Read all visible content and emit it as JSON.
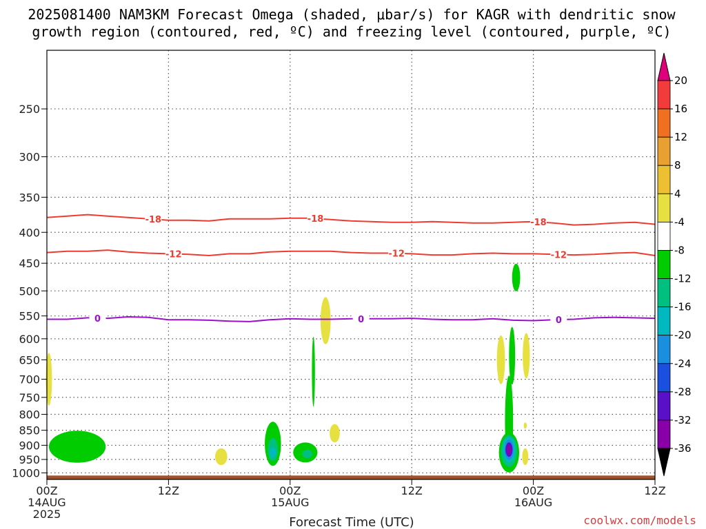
{
  "chart_data": {
    "type": "time-height",
    "title": "2025081400 NAM3KM Forecast Omega (shaded, μbar/s) for KAGR with dendritic snow",
    "subtitle": "growth region (contoured, red, ºC) and freezing level (contoured, purple, ºC)",
    "xlabel": "Forecast Time (UTC)",
    "x_ticks": [
      {
        "hour": 0,
        "label": "00Z",
        "date": "14AUG",
        "year": "2025"
      },
      {
        "hour": 12,
        "label": "12Z",
        "date": "",
        "year": ""
      },
      {
        "hour": 24,
        "label": "00Z",
        "date": "15AUG",
        "year": ""
      },
      {
        "hour": 36,
        "label": "12Z",
        "date": "",
        "year": ""
      },
      {
        "hour": 48,
        "label": "00Z",
        "date": "16AUG",
        "year": ""
      },
      {
        "hour": 60,
        "label": "12Z",
        "date": "",
        "year": ""
      }
    ],
    "xlim": [
      0,
      60
    ],
    "y_ticks": [
      250,
      300,
      350,
      400,
      450,
      500,
      550,
      600,
      650,
      700,
      750,
      800,
      850,
      900,
      950,
      1000
    ],
    "y_tick_labels": [
      "250",
      "300",
      "350",
      "400",
      "450",
      "500",
      "550",
      "600",
      "650",
      "700",
      "750",
      "800",
      "850",
      "900",
      "950",
      "1000"
    ],
    "ylim": [
      200,
      1025
    ],
    "grid": true,
    "colorbar": {
      "labels": [
        "20",
        "16",
        "12",
        "8",
        "4",
        "-4",
        "-8",
        "-12",
        "-16",
        "-20",
        "-24",
        "-28",
        "-32",
        "-36"
      ],
      "colors": [
        "#e0007a",
        "#f23b3b",
        "#f07020",
        "#e8a030",
        "#ecc030",
        "#e6e040",
        "#ffffff",
        "#00cc00",
        "#00c080",
        "#00b8c0",
        "#1a8fe0",
        "#1a4fe0",
        "#5a10c8",
        "#8a00a8",
        "#a0a0a0",
        "#000000"
      ]
    },
    "contours": [
      {
        "name": "-18",
        "color": "#ee3b30",
        "x": [
          0,
          2,
          4,
          6,
          8,
          10,
          12,
          14,
          16,
          18,
          20,
          22,
          24,
          26,
          28,
          30,
          32,
          34,
          36,
          38,
          40,
          42,
          44,
          46,
          48,
          50,
          52,
          54,
          56,
          58,
          60
        ],
        "y": [
          378,
          376,
          374,
          376,
          378,
          380,
          382,
          382,
          383,
          380,
          380,
          380,
          379,
          379,
          381,
          383,
          384,
          385,
          385,
          384,
          385,
          386,
          386,
          385,
          384,
          386,
          389,
          388,
          386,
          385,
          388
        ],
        "labels_at": [
          10.5,
          26.5,
          48.5
        ]
      },
      {
        "name": "-12",
        "color": "#ee3b30",
        "x": [
          0,
          2,
          4,
          6,
          8,
          10,
          12,
          14,
          16,
          18,
          20,
          22,
          24,
          26,
          28,
          30,
          32,
          34,
          36,
          38,
          40,
          42,
          44,
          46,
          48,
          50,
          52,
          54,
          56,
          58,
          60
        ],
        "y": [
          432,
          430,
          430,
          428,
          431,
          433,
          434,
          435,
          437,
          434,
          434,
          431,
          430,
          430,
          430,
          432,
          433,
          433,
          434,
          436,
          436,
          434,
          433,
          434,
          434,
          435,
          436,
          435,
          433,
          432,
          437
        ],
        "labels_at": [
          12.5,
          34.5,
          50.5
        ]
      },
      {
        "name": "0",
        "color": "#9a10c8",
        "x": [
          0,
          2,
          4,
          6,
          8,
          10,
          12,
          14,
          16,
          18,
          20,
          22,
          24,
          26,
          28,
          30,
          32,
          34,
          36,
          38,
          40,
          42,
          44,
          46,
          48,
          50,
          52,
          54,
          56,
          58,
          60
        ],
        "y": [
          557,
          557,
          554,
          555,
          552,
          553,
          558,
          558,
          559,
          561,
          562,
          558,
          556,
          557,
          557,
          556,
          556,
          556,
          555,
          557,
          558,
          558,
          556,
          559,
          560,
          558,
          557,
          554,
          553,
          554,
          555
        ],
        "labels_at": [
          5,
          31,
          50.5
        ]
      }
    ],
    "omega_features": [
      {
        "name": "yellow-cell",
        "value": 4,
        "color": "#e6e040",
        "x": 0.2,
        "p": 700,
        "rx": 0.3,
        "rp": 70
      },
      {
        "name": "green-cell",
        "value": -4,
        "color": "#00cc00",
        "x": 3,
        "p": 905,
        "rx": 2.8,
        "rp": 55
      },
      {
        "name": "yellow-cell",
        "value": 4,
        "color": "#e6e040",
        "x": 17.2,
        "p": 940,
        "rx": 0.6,
        "rp": 30
      },
      {
        "name": "green-cell",
        "value": -4,
        "color": "#00cc00",
        "x": 22.3,
        "p": 895,
        "rx": 0.8,
        "rp": 75
      },
      {
        "name": "teal-cell",
        "value": -8,
        "color": "#00c080",
        "x": 22.3,
        "p": 915,
        "rx": 0.5,
        "rp": 40
      },
      {
        "name": "blue-cell",
        "value": -12,
        "color": "#00b8c0",
        "x": 22.3,
        "p": 925,
        "rx": 0.3,
        "rp": 18
      },
      {
        "name": "green-cell",
        "value": -4,
        "color": "#00cc00",
        "x": 25.5,
        "p": 925,
        "rx": 1.2,
        "rp": 35
      },
      {
        "name": "teal-cell",
        "value": -8,
        "color": "#00c080",
        "x": 25.7,
        "p": 930,
        "rx": 0.5,
        "rp": 15
      },
      {
        "name": "green-cell",
        "value": -4,
        "color": "#00cc00",
        "x": 26.3,
        "p": 680,
        "rx": 0.15,
        "rp": 90
      },
      {
        "name": "yellow-cell",
        "value": 4,
        "color": "#e6e040",
        "x": 27.5,
        "p": 560,
        "rx": 0.5,
        "rp": 50
      },
      {
        "name": "yellow-cell",
        "value": 4,
        "color": "#e6e040",
        "x": 28.4,
        "p": 860,
        "rx": 0.5,
        "rp": 30
      },
      {
        "name": "green-cell",
        "value": -4,
        "color": "#00cc00",
        "x": 46.3,
        "p": 475,
        "rx": 0.4,
        "rp": 25
      },
      {
        "name": "yellow-cell",
        "value": 4,
        "color": "#e6e040",
        "x": 44.8,
        "p": 650,
        "rx": 0.4,
        "rp": 60
      },
      {
        "name": "yellow-cell",
        "value": 4,
        "color": "#e6e040",
        "x": 47.3,
        "p": 640,
        "rx": 0.35,
        "rp": 55
      },
      {
        "name": "green-cell",
        "value": -4,
        "color": "#00cc00",
        "x": 45.9,
        "p": 640,
        "rx": 0.3,
        "rp": 70
      },
      {
        "name": "green-cell",
        "value": -4,
        "color": "#00cc00",
        "x": 45.6,
        "p": 820,
        "rx": 0.4,
        "rp": 140
      },
      {
        "name": "green-cell",
        "value": -4,
        "color": "#00cc00",
        "x": 45.6,
        "p": 925,
        "rx": 1.0,
        "rp": 70
      },
      {
        "name": "teal-cell",
        "value": -8,
        "color": "#00c080",
        "x": 45.6,
        "p": 920,
        "rx": 0.8,
        "rp": 55
      },
      {
        "name": "blue-cell",
        "value": -12,
        "color": "#00b8c0",
        "x": 45.6,
        "p": 915,
        "rx": 0.6,
        "rp": 45
      },
      {
        "name": "sky-cell",
        "value": -16,
        "color": "#1a8fe0",
        "x": 45.6,
        "p": 915,
        "rx": 0.45,
        "rp": 35
      },
      {
        "name": "violet-cell",
        "value": -24,
        "color": "#5a10c8",
        "x": 45.6,
        "p": 915,
        "rx": 0.35,
        "rp": 25
      },
      {
        "name": "purple-cell",
        "value": -28,
        "color": "#8a00a8",
        "x": 45.6,
        "p": 915,
        "rx": 0.2,
        "rp": 15
      },
      {
        "name": "yellow-cell",
        "value": 4,
        "color": "#e6e040",
        "x": 47.2,
        "p": 940,
        "rx": 0.3,
        "rp": 30
      },
      {
        "name": "yellow-cell",
        "value": 4,
        "color": "#e6e040",
        "x": 47.2,
        "p": 835,
        "rx": 0.15,
        "rp": 10
      }
    ],
    "ground_color": "#a0522d"
  },
  "credit": "coolwx.com/models",
  "credit_color": "#d04040"
}
